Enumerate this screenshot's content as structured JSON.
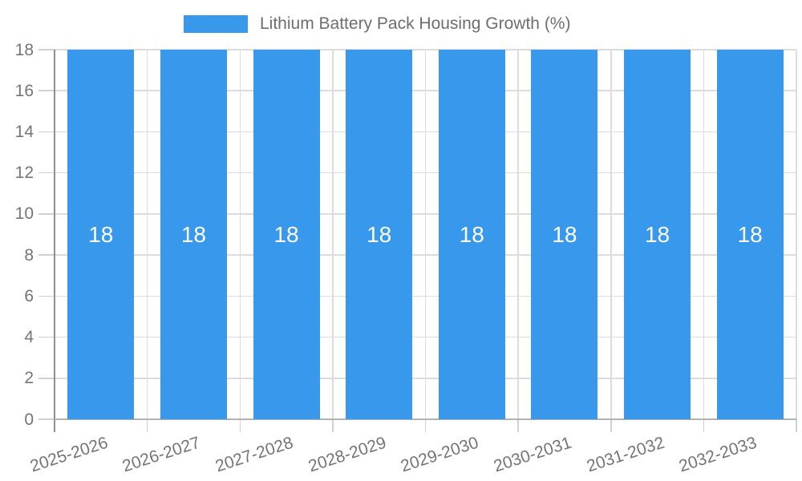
{
  "chart_data": {
    "type": "bar",
    "title": "Lithium Battery Pack Housing Growth (%)",
    "categories": [
      "2025-2026",
      "2026-2027",
      "2027-2028",
      "2028-2029",
      "2029-2030",
      "2030-2031",
      "2031-2032",
      "2032-2033"
    ],
    "values": [
      18,
      18,
      18,
      18,
      18,
      18,
      18,
      18
    ],
    "bar_labels": [
      "18",
      "18",
      "18",
      "18",
      "18",
      "18",
      "18",
      "18"
    ],
    "xlabel": "",
    "ylabel": "",
    "ylim": [
      0,
      18
    ],
    "yticks": [
      0,
      2,
      4,
      6,
      8,
      10,
      12,
      14,
      16,
      18
    ],
    "grid": true,
    "legend_position": "top-center",
    "colors": {
      "bar": "#3898ec",
      "bar_label": "#ffffff",
      "tick_text": "#757575",
      "legend_text": "#6e6e6e",
      "grid": "#dcdcdc",
      "tick_mark": "#d0d0d0",
      "y_axis_line": "#8f8f8f",
      "x_axis_line": "#b3b3b3",
      "background": "#ffffff"
    }
  }
}
